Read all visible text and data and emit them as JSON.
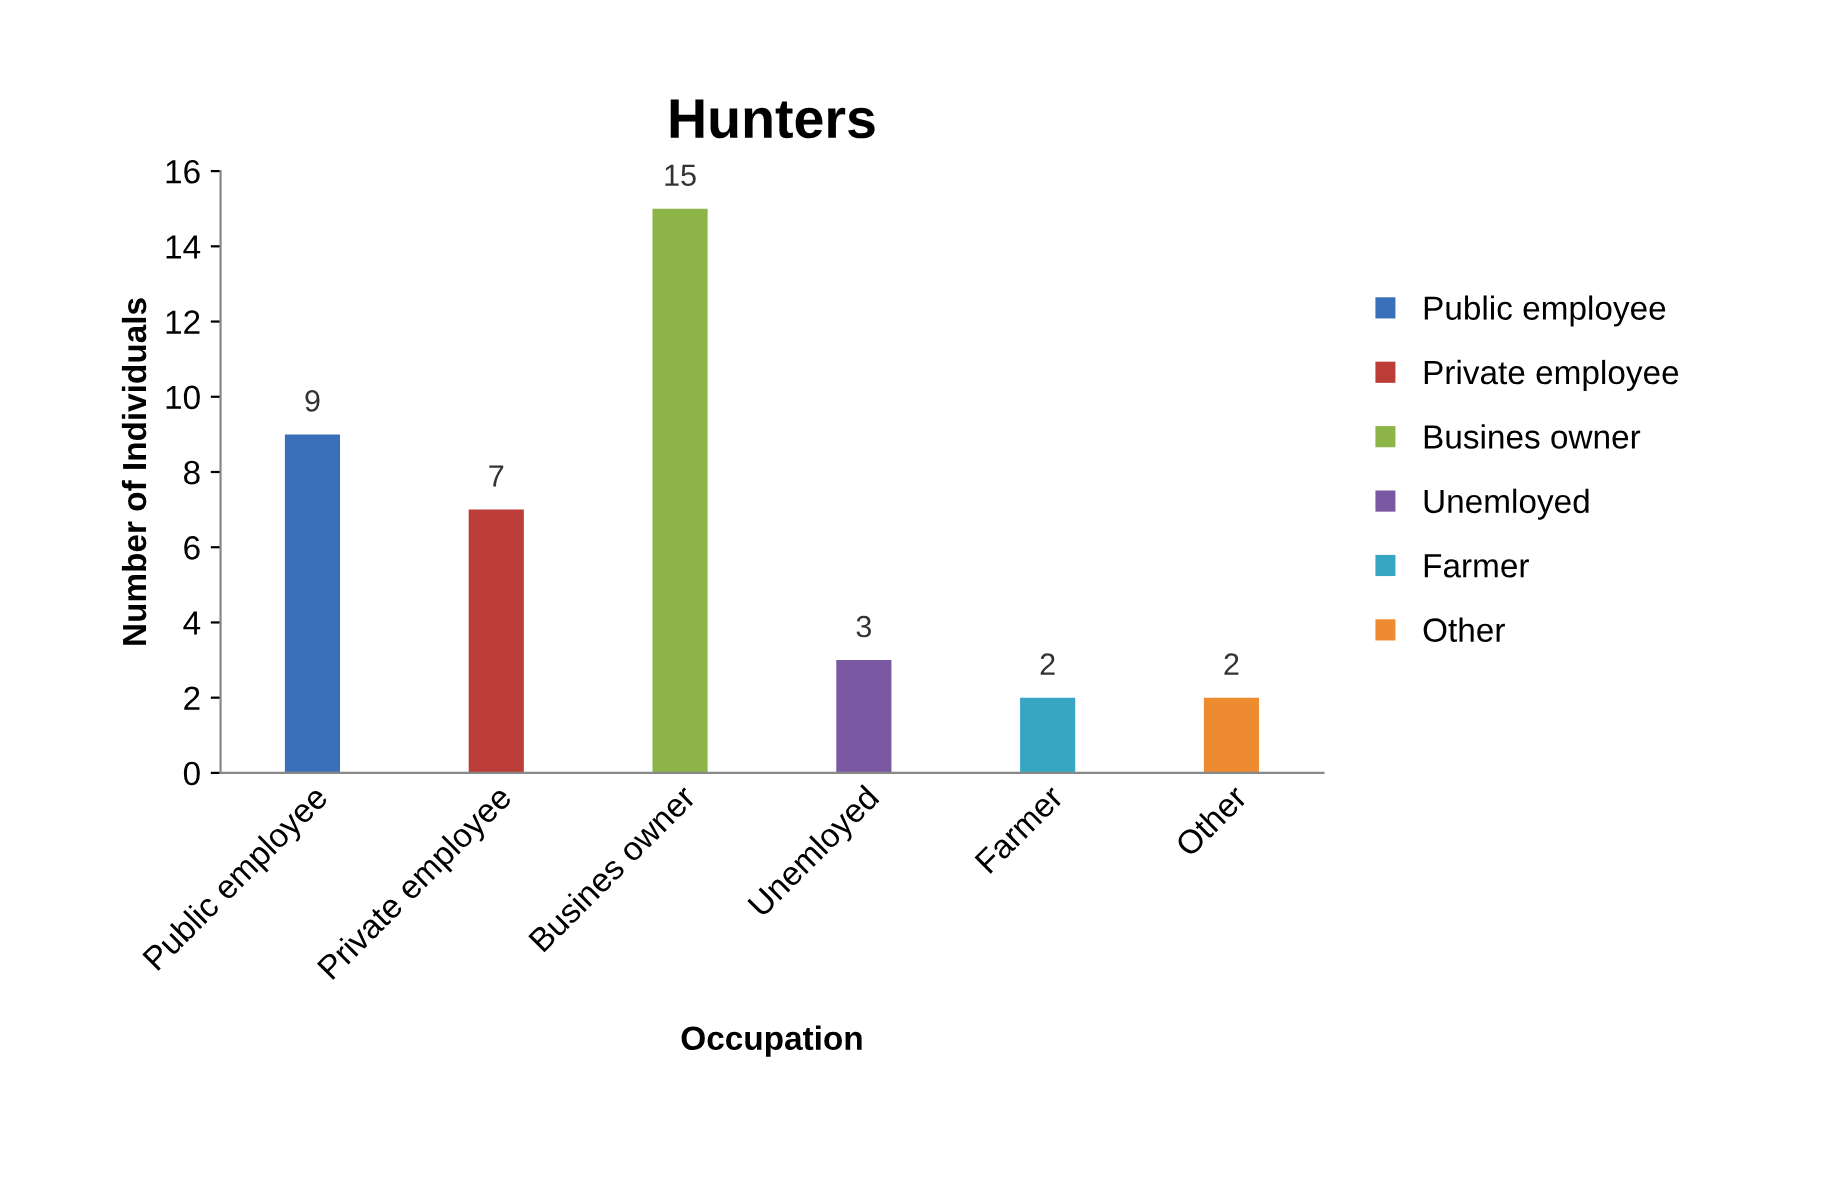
{
  "chart_data": {
    "type": "bar",
    "title": "Hunters",
    "xlabel": "Occupation",
    "ylabel": "Number of Individuals",
    "categories": [
      "Public employee",
      "Private employee",
      "Busines owner",
      "Unemloyed",
      "Farmer",
      "Other"
    ],
    "series": [
      {
        "name": "Public employee",
        "color": "#3a6fba",
        "values": [
          9,
          null,
          null,
          null,
          null,
          null
        ]
      },
      {
        "name": "Private employee",
        "color": "#bc3c38",
        "values": [
          null,
          7,
          null,
          null,
          null,
          null
        ]
      },
      {
        "name": "Busines owner",
        "color": "#8db446",
        "values": [
          null,
          null,
          15,
          null,
          null,
          null
        ]
      },
      {
        "name": "Unemloyed",
        "color": "#7a58a2",
        "values": [
          null,
          null,
          null,
          3,
          null,
          null
        ]
      },
      {
        "name": "Farmer",
        "color": "#37a6c3",
        "values": [
          null,
          null,
          null,
          null,
          2,
          null
        ]
      },
      {
        "name": "Other",
        "color": "#ee8a30",
        "values": [
          null,
          null,
          null,
          null,
          null,
          2
        ]
      }
    ],
    "ylim": [
      0,
      16
    ],
    "yticks": [
      0,
      2,
      4,
      6,
      8,
      10,
      12,
      14,
      16
    ],
    "data_labels": true,
    "legend": "right",
    "grid": false
  }
}
